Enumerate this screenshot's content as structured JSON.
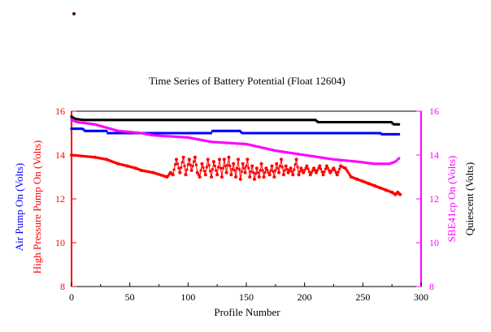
{
  "chart_data": {
    "type": "line",
    "title": "Time Series of Battery Potential (Float 12604)",
    "xlabel": "Profile Number",
    "xlim": [
      0,
      300
    ],
    "ylim": [
      8,
      16
    ],
    "x_ticks": [
      "0",
      "50",
      "100",
      "150",
      "200",
      "250",
      "300"
    ],
    "y_ticks": [
      "8",
      "10",
      "12",
      "14",
      "16"
    ],
    "left_axis_labels": [
      {
        "text": "Air Pump On (Volts)",
        "color": "#0000ff"
      },
      {
        "text": "High Pressure Pump On (Volts)",
        "color": "#ff0000"
      }
    ],
    "right_axis_labels": [
      {
        "text": "SBE41cp On (Volts)",
        "color": "#ff00ff"
      },
      {
        "text": "Quiescent (Volts)",
        "color": "#000000"
      }
    ],
    "left_axis_color": "#ff0000",
    "right_axis_color": "#ff00ff",
    "series": [
      {
        "name": "Quiescent",
        "color": "#000000",
        "style": "step",
        "points": [
          [
            0,
            15.75
          ],
          [
            3,
            15.65
          ],
          [
            10,
            15.6
          ],
          [
            210,
            15.6
          ],
          [
            211,
            15.5
          ],
          [
            275,
            15.5
          ],
          [
            276,
            15.4
          ],
          [
            282,
            15.4
          ]
        ]
      },
      {
        "name": "Air Pump On",
        "color": "#0000ff",
        "style": "step",
        "points": [
          [
            0,
            15.2
          ],
          [
            10,
            15.2
          ],
          [
            11,
            15.1
          ],
          [
            30,
            15.1
          ],
          [
            31,
            15.0
          ],
          [
            120,
            15.0
          ],
          [
            121,
            15.1
          ],
          [
            145,
            15.1
          ],
          [
            146,
            15.0
          ],
          [
            265,
            15.0
          ],
          [
            266,
            14.95
          ],
          [
            282,
            14.95
          ]
        ]
      },
      {
        "name": "SBE41cp On",
        "color": "#ff00ff",
        "style": "step",
        "points": [
          [
            0,
            15.6
          ],
          [
            5,
            15.5
          ],
          [
            20,
            15.4
          ],
          [
            40,
            15.1
          ],
          [
            60,
            15.0
          ],
          [
            70,
            14.9
          ],
          [
            100,
            14.8
          ],
          [
            120,
            14.6
          ],
          [
            150,
            14.5
          ],
          [
            175,
            14.2
          ],
          [
            200,
            14.0
          ],
          [
            225,
            13.8
          ],
          [
            245,
            13.7
          ],
          [
            260,
            13.6
          ],
          [
            273,
            13.6
          ],
          [
            278,
            13.7
          ],
          [
            282,
            13.9
          ]
        ]
      },
      {
        "name": "High Pressure Pump On",
        "color": "#ff0000",
        "style": "line",
        "points": [
          [
            0,
            14.0
          ],
          [
            20,
            13.9
          ],
          [
            30,
            13.8
          ],
          [
            40,
            13.6
          ],
          [
            48,
            13.5
          ],
          [
            55,
            13.4
          ],
          [
            60,
            13.3
          ],
          [
            70,
            13.2
          ],
          [
            82,
            13.0
          ],
          [
            85,
            13.2
          ],
          [
            87,
            13.1
          ],
          [
            90,
            13.8
          ],
          [
            93,
            13.2
          ],
          [
            96,
            13.9
          ],
          [
            98,
            13.1
          ],
          [
            101,
            13.8
          ],
          [
            103,
            13.3
          ],
          [
            106,
            13.9
          ],
          [
            108,
            13.2
          ],
          [
            110,
            13.0
          ],
          [
            112,
            13.6
          ],
          [
            115,
            13.1
          ],
          [
            117,
            13.8
          ],
          [
            120,
            13.0
          ],
          [
            122,
            13.7
          ],
          [
            125,
            13.1
          ],
          [
            127,
            13.8
          ],
          [
            129,
            13.0
          ],
          [
            131,
            13.8
          ],
          [
            133,
            13.2
          ],
          [
            135,
            13.9
          ],
          [
            137,
            13.1
          ],
          [
            139,
            13.6
          ],
          [
            141,
            13.0
          ],
          [
            143,
            13.8
          ],
          [
            145,
            12.9
          ],
          [
            147,
            13.6
          ],
          [
            149,
            13.2
          ],
          [
            151,
            13.8
          ],
          [
            153,
            13.0
          ],
          [
            155,
            13.5
          ],
          [
            157,
            12.9
          ],
          [
            159,
            13.4
          ],
          [
            161,
            13.0
          ],
          [
            163,
            13.6
          ],
          [
            165,
            13.0
          ],
          [
            167,
            13.4
          ],
          [
            170,
            13.1
          ],
          [
            172,
            13.5
          ],
          [
            174,
            13.0
          ],
          [
            176,
            13.6
          ],
          [
            178,
            13.2
          ],
          [
            180,
            13.8
          ],
          [
            182,
            13.1
          ],
          [
            184,
            13.5
          ],
          [
            186,
            13.2
          ],
          [
            188,
            13.4
          ],
          [
            190,
            13.1
          ],
          [
            193,
            13.8
          ],
          [
            195,
            13.1
          ],
          [
            197,
            13.4
          ],
          [
            199,
            13.2
          ],
          [
            202,
            13.5
          ],
          [
            205,
            13.1
          ],
          [
            208,
            13.4
          ],
          [
            210,
            13.2
          ],
          [
            213,
            13.5
          ],
          [
            216,
            13.1
          ],
          [
            219,
            13.5
          ],
          [
            222,
            13.2
          ],
          [
            225,
            13.4
          ],
          [
            228,
            13.1
          ],
          [
            231,
            13.5
          ],
          [
            235,
            13.4
          ],
          [
            240,
            13.0
          ],
          [
            245,
            12.9
          ],
          [
            250,
            12.8
          ],
          [
            255,
            12.7
          ],
          [
            260,
            12.6
          ],
          [
            265,
            12.5
          ],
          [
            270,
            12.4
          ],
          [
            275,
            12.3
          ],
          [
            278,
            12.2
          ],
          [
            280,
            12.3
          ],
          [
            282,
            12.2
          ]
        ]
      }
    ],
    "corner_dot_color": "#4b0e3a",
    "grid": false,
    "legend": "none"
  }
}
